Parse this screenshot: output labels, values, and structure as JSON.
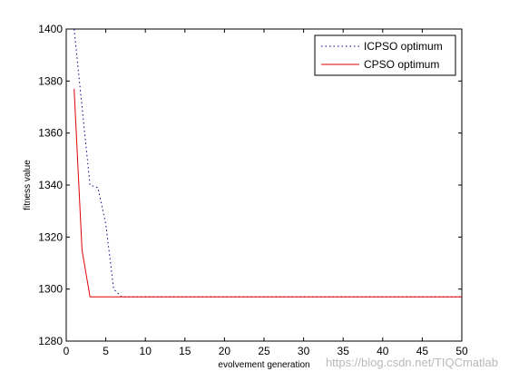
{
  "chart_data": {
    "type": "line",
    "title": "",
    "xlabel": "evolvement generation",
    "ylabel": "fitness value",
    "xlim": [
      0,
      50
    ],
    "ylim": [
      1280,
      1400
    ],
    "xticks": [
      0,
      5,
      10,
      15,
      20,
      25,
      30,
      35,
      40,
      45,
      50
    ],
    "yticks": [
      1280,
      1300,
      1320,
      1340,
      1360,
      1380,
      1400
    ],
    "grid": false,
    "legend_position": "top-right",
    "series": [
      {
        "name": "ICPSO optimum",
        "color": "#000080",
        "line_style": "dotted",
        "x": [
          1,
          2,
          3,
          4,
          5,
          6,
          7,
          50
        ],
        "y": [
          1400,
          1370,
          1340,
          1339,
          1325,
          1300,
          1297,
          1297
        ]
      },
      {
        "name": "CPSO optimum",
        "color": "#e00000",
        "line_style": "solid",
        "x": [
          1,
          2,
          3,
          50
        ],
        "y": [
          1377,
          1315,
          1297,
          1297
        ]
      }
    ]
  },
  "watermark": "https://blog.csdn.net/TIQCmatlab"
}
